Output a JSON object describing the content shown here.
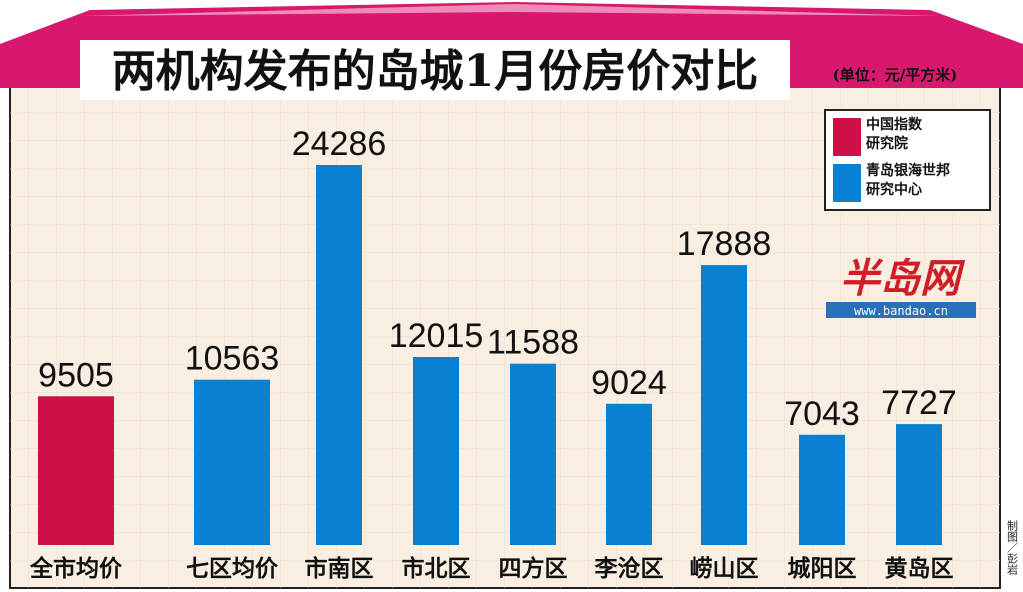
{
  "chart_data": {
    "type": "bar",
    "title": "两机构发布的岛城1月份房价对比",
    "subtitle": "(单位：元/平方米)",
    "categories": [
      "全市均价",
      "七区均价",
      "市南区",
      "市北区",
      "四方区",
      "李沧区",
      "崂山区",
      "城阳区",
      "黄岛区"
    ],
    "series": [
      {
        "name": "中国指数研究院",
        "color": "#cf1048",
        "values": [
          9505,
          null,
          null,
          null,
          null,
          null,
          null,
          null,
          null
        ]
      },
      {
        "name": "青岛银海世邦研究中心",
        "color": "#0a80d2",
        "values": [
          null,
          10563,
          24286,
          12015,
          11588,
          9024,
          17888,
          7043,
          7727
        ]
      }
    ],
    "legend": "upper right",
    "logo": "半岛网",
    "logo_url": "www.bandao.cn",
    "credit": "制图／彭岩"
  }
}
